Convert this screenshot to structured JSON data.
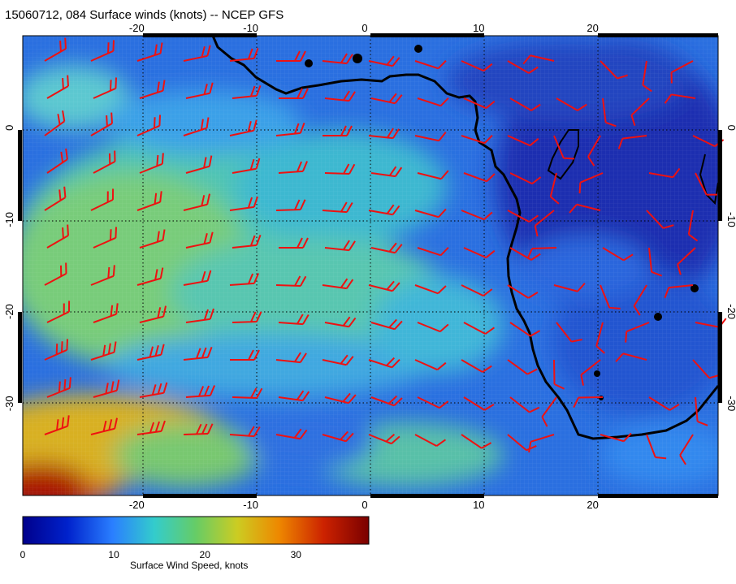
{
  "title": "15060712, 084 Surface winds (knots) -- NCEP GFS",
  "map": {
    "lon_range": [
      -30,
      31
    ],
    "lat_range": [
      -40,
      10
    ],
    "lon_ticks": [
      "-20",
      "-10",
      "0",
      "10",
      "20"
    ],
    "lat_ticks": [
      "0",
      "-10",
      "-20",
      "-30"
    ],
    "grid": "dotted",
    "barb_color": "#ee1111",
    "coast_color": "#000000"
  },
  "colorbar": {
    "label": "Surface Wind Speed, knots",
    "ticks": [
      "0",
      "10",
      "20",
      "30"
    ],
    "range": [
      0,
      38
    ],
    "colors": [
      "#00008b",
      "#0033cc",
      "#2a7fff",
      "#33cccc",
      "#66cc66",
      "#cccc22",
      "#ee8800",
      "#cc2200",
      "#7a0000"
    ]
  }
}
